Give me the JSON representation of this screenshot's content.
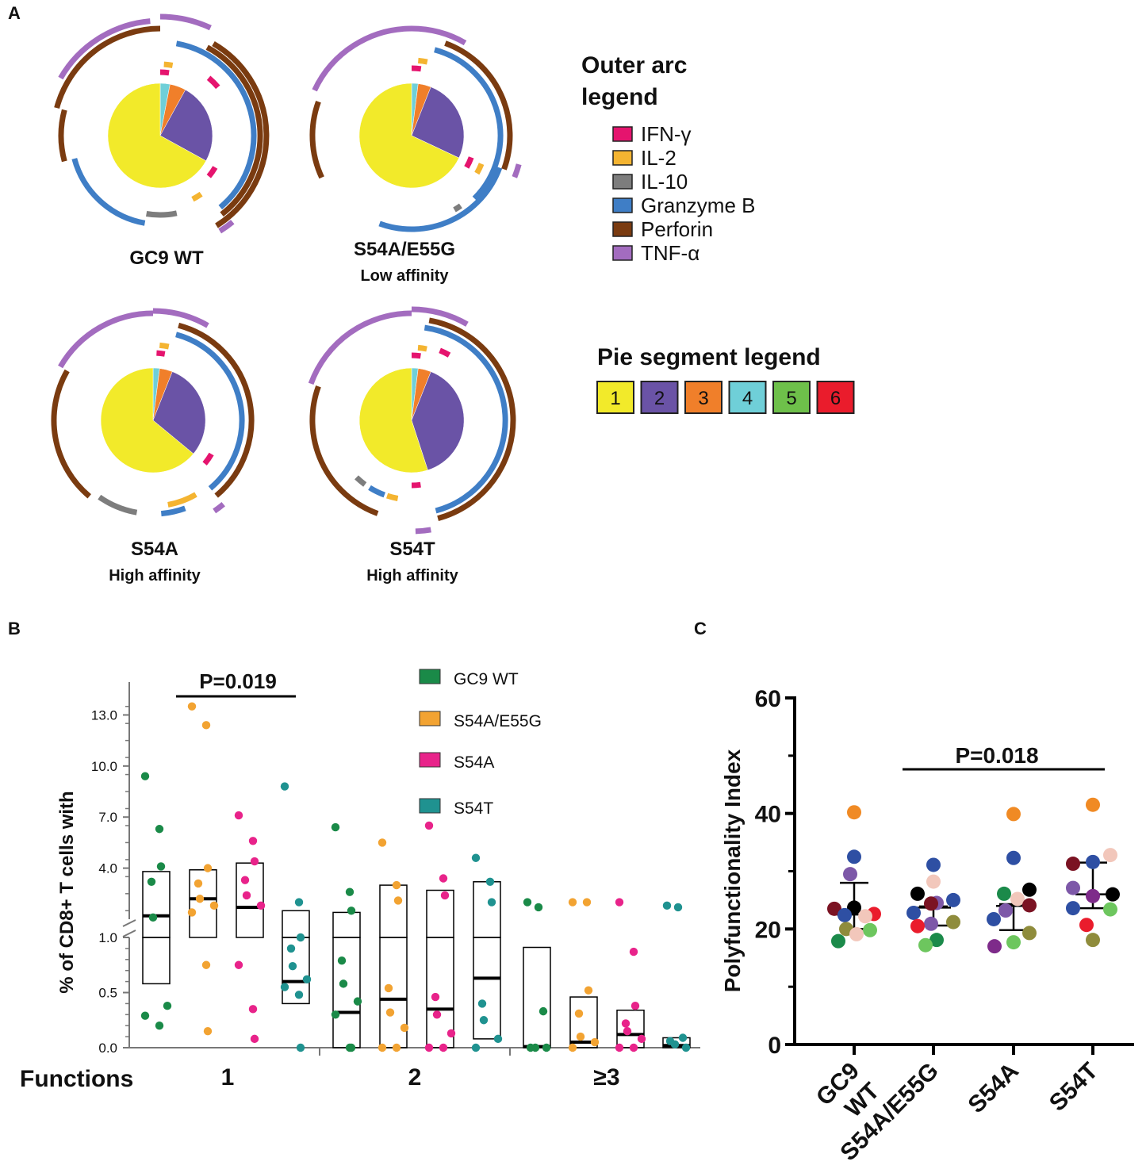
{
  "panel_labels": {
    "a": "A",
    "b": "B",
    "c": "C"
  },
  "outer_arc_legend": {
    "title_line1": "Outer arc",
    "title_line2": "legend",
    "items": [
      {
        "label": "IFN-γ",
        "color": "#e5146e"
      },
      {
        "label": "IL-2",
        "color": "#f4b431"
      },
      {
        "label": "IL-10",
        "color": "#7d7d7d"
      },
      {
        "label": "Granzyme B",
        "color": "#3f7ec6"
      },
      {
        "label": "Perforin",
        "color": "#7a3b10"
      },
      {
        "label": "TNF-α",
        "color": "#a36cbf"
      }
    ]
  },
  "pie_legend": {
    "title": "Pie segment legend",
    "items": [
      {
        "label": "1",
        "color": "#f2ea2a"
      },
      {
        "label": "2",
        "color": "#6a53a6"
      },
      {
        "label": "3",
        "color": "#f07f2a"
      },
      {
        "label": "4",
        "color": "#6fcfd8"
      },
      {
        "label": "5",
        "color": "#6ec04a"
      },
      {
        "label": "6",
        "color": "#ea1c2c"
      }
    ]
  },
  "spice_pies": [
    {
      "title": "GC9 WT",
      "subtitle": "",
      "slices": [
        {
          "segment": "1",
          "value": 67
        },
        {
          "segment": "2",
          "value": 25
        },
        {
          "segment": "3",
          "value": 5
        },
        {
          "segment": "4",
          "value": 3
        }
      ]
    },
    {
      "title": "S54A/E55G",
      "subtitle": "Low affinity",
      "slices": [
        {
          "segment": "1",
          "value": 68
        },
        {
          "segment": "2",
          "value": 26
        },
        {
          "segment": "3",
          "value": 4
        },
        {
          "segment": "4",
          "value": 2
        }
      ]
    },
    {
      "title": "S54A",
      "subtitle": "High affinity",
      "slices": [
        {
          "segment": "1",
          "value": 64
        },
        {
          "segment": "2",
          "value": 30
        },
        {
          "segment": "3",
          "value": 4
        },
        {
          "segment": "4",
          "value": 2
        }
      ]
    },
    {
      "title": "S54T",
      "subtitle": "High affinity",
      "slices": [
        {
          "segment": "1",
          "value": 55
        },
        {
          "segment": "2",
          "value": 39
        },
        {
          "segment": "3",
          "value": 4
        },
        {
          "segment": "4",
          "value": 2
        }
      ]
    }
  ],
  "chart_data": [
    {
      "type": "scatter",
      "title": "",
      "ylabel": "% of CD8+ T cells with",
      "xlabel": "Functions",
      "x_groups": [
        "1",
        "2",
        "≥3"
      ],
      "y_axis_lower": {
        "range": [
          0,
          1.0
        ],
        "ticks": [
          "0.0",
          "0.5",
          "1.0"
        ]
      },
      "y_axis_upper": {
        "range": [
          1.0,
          14.0
        ],
        "ticks": [
          "4.0",
          "7.0",
          "10.0",
          "13.0"
        ]
      },
      "annotation": "P=0.019",
      "series": [
        {
          "name": "GC9 WT",
          "color": "#1a8a48"
        },
        {
          "name": "S54A/E55G",
          "color": "#f2a332"
        },
        {
          "name": "S54A",
          "color": "#e8238a"
        },
        {
          "name": "S54T",
          "color": "#1f9290"
        }
      ],
      "groups": [
        {
          "function": "1",
          "series": "GC9 WT",
          "median": 1.2,
          "q1": 0.58,
          "q3": 3.8,
          "points": [
            9.4,
            6.3,
            4.1,
            3.2,
            1.1,
            0.38,
            0.29,
            0.2
          ]
        },
        {
          "function": "1",
          "series": "S54A/E55G",
          "median": 2.2,
          "q1": 1.0,
          "q3": 3.9,
          "points": [
            13.5,
            12.4,
            4.0,
            3.1,
            2.2,
            1.8,
            1.4,
            0.75,
            0.15
          ]
        },
        {
          "function": "1",
          "series": "S54A",
          "median": 1.7,
          "q1": 1.0,
          "q3": 4.3,
          "points": [
            7.1,
            5.6,
            4.4,
            3.3,
            2.4,
            1.8,
            0.75,
            0.35,
            0.08
          ]
        },
        {
          "function": "1",
          "series": "S54T",
          "median": 0.6,
          "q1": 0.4,
          "q3": 1.5,
          "points": [
            8.8,
            2.0,
            1.0,
            0.9,
            0.74,
            0.62,
            0.55,
            0.48,
            0.0
          ]
        },
        {
          "function": "2",
          "series": "GC9 WT",
          "median": 0.32,
          "q1": 0.0,
          "q3": 1.4,
          "points": [
            6.4,
            2.6,
            1.5,
            0.79,
            0.58,
            0.42,
            0.3,
            0.0,
            0.0
          ]
        },
        {
          "function": "2",
          "series": "S54A/E55G",
          "median": 0.44,
          "q1": 0.0,
          "q3": 3.0,
          "points": [
            5.5,
            3.0,
            2.1,
            0.54,
            0.32,
            0.18,
            0.0,
            0.0
          ]
        },
        {
          "function": "2",
          "series": "S54A",
          "median": 0.35,
          "q1": 0.0,
          "q3": 2.7,
          "points": [
            6.5,
            3.4,
            2.4,
            0.46,
            0.3,
            0.13,
            0.0,
            0.0
          ]
        },
        {
          "function": "2",
          "series": "S54T",
          "median": 0.63,
          "q1": 0.08,
          "q3": 3.2,
          "points": [
            4.6,
            3.2,
            2.0,
            0.4,
            0.25,
            0.08,
            0.0
          ]
        },
        {
          "function": "≥3",
          "series": "GC9 WT",
          "median": 0.01,
          "q1": 0.0,
          "q3": 0.91,
          "points": [
            2.0,
            1.7,
            0.33,
            0.0,
            0.0,
            0.0
          ]
        },
        {
          "function": "≥3",
          "series": "S54A/E55G",
          "median": 0.05,
          "q1": 0.0,
          "q3": 0.46,
          "points": [
            2.0,
            2.0,
            0.52,
            0.31,
            0.1,
            0.05,
            0.0
          ]
        },
        {
          "function": "≥3",
          "series": "S54A",
          "median": 0.12,
          "q1": 0.0,
          "q3": 0.34,
          "points": [
            2.0,
            0.87,
            0.38,
            0.22,
            0.15,
            0.08,
            0.0,
            0.0
          ]
        },
        {
          "function": "≥3",
          "series": "S54T",
          "median": 0.02,
          "q1": 0.0,
          "q3": 0.09,
          "points": [
            1.8,
            1.7,
            0.09,
            0.06,
            0.03,
            0.0
          ]
        }
      ]
    },
    {
      "type": "scatter",
      "title": "",
      "ylabel": "Polyfunctionality Index",
      "xlabel": "",
      "categories": [
        "GC9 WT",
        "S54A/E55G",
        "S54A",
        "S54T"
      ],
      "ylim": [
        0,
        60
      ],
      "y_ticks": [
        "0",
        "20",
        "40",
        "60"
      ],
      "annotation": "P=0.018",
      "donor_colors": [
        "#f08a24",
        "#2e4fa3",
        "#7d58a8",
        "#000000",
        "#7b1323",
        "#ea1c2c",
        "#f2c7bb",
        "#8f8c3c",
        "#6dc65e",
        "#1b8a4a",
        "#7e2b8a"
      ],
      "groups": [
        {
          "name": "GC9 WT",
          "median": 22.5,
          "q1": 20.0,
          "q3": 28.0,
          "values": [
            40.2,
            32.5,
            29.5,
            23.7,
            23.5,
            22.6,
            22.4,
            22.2,
            20.0,
            19.8,
            19.1,
            17.9
          ]
        },
        {
          "name": "S54A/E55G",
          "median": 23.7,
          "q1": 20.6,
          "q3": 23.9,
          "values": [
            31.1,
            28.2,
            26.1,
            25.0,
            24.5,
            24.4,
            22.8,
            21.2,
            20.9,
            20.5,
            18.1,
            17.2
          ]
        },
        {
          "name": "S54A",
          "median": 24.0,
          "q1": 19.8,
          "q3": 24.3,
          "values": [
            39.9,
            32.3,
            26.8,
            26.1,
            25.2,
            24.1,
            23.2,
            21.7,
            19.3,
            17.7,
            17.0
          ]
        },
        {
          "name": "S54T",
          "median": 26.0,
          "q1": 23.6,
          "q3": 31.5,
          "values": [
            41.5,
            32.8,
            31.6,
            31.3,
            27.1,
            26.0,
            25.7,
            23.6,
            23.4,
            20.7,
            18.1
          ]
        }
      ]
    }
  ]
}
